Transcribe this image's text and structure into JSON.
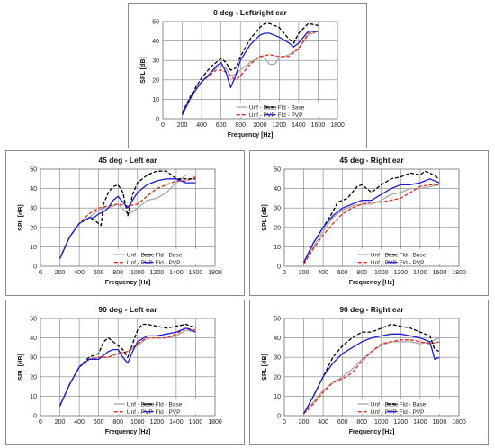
{
  "chart_data": [
    {
      "type": "line",
      "title": "0 deg - Left/right ear",
      "xlabel": "Frequency [Hz]",
      "ylabel": "SPL [dB]",
      "xlim": [
        0,
        1800
      ],
      "ylim": [
        0,
        50
      ],
      "xticks": [
        0,
        200,
        400,
        600,
        800,
        1000,
        1200,
        1400,
        1600,
        1800
      ],
      "yticks": [
        0,
        10,
        20,
        30,
        40,
        50
      ],
      "grid": true,
      "legend": "bottom-right inside, 2 columns",
      "series": [
        {
          "name": "Unf - Base",
          "color": "#a6a6a6",
          "style": "solid",
          "x": [
            200,
            300,
            400,
            500,
            550,
            600,
            650,
            700,
            750,
            800,
            900,
            1000,
            1050,
            1100,
            1150,
            1200,
            1300,
            1400,
            1500,
            1600
          ],
          "y": [
            3,
            12,
            19,
            24,
            26,
            27,
            26,
            22,
            23,
            25,
            29,
            32,
            31,
            28,
            28,
            31,
            33,
            36,
            43,
            45
          ]
        },
        {
          "name": "Unf - PVP",
          "color": "#e8291c",
          "style": "dashed",
          "x": [
            200,
            300,
            400,
            500,
            550,
            600,
            650,
            700,
            750,
            800,
            900,
            1000,
            1100,
            1200,
            1300,
            1400,
            1500,
            1600
          ],
          "y": [
            2,
            12,
            19,
            23,
            25,
            25,
            24,
            22,
            20,
            22,
            28,
            32,
            33,
            32,
            32,
            36,
            44,
            45
          ]
        },
        {
          "name": "Fld - Base",
          "color": "#000000",
          "style": "dashed",
          "x": [
            200,
            300,
            400,
            500,
            550,
            600,
            650,
            700,
            750,
            800,
            900,
            1000,
            1050,
            1100,
            1200,
            1300,
            1350,
            1400,
            1500,
            1600
          ],
          "y": [
            3,
            13,
            21,
            27,
            29,
            31,
            29,
            25,
            26,
            32,
            41,
            47,
            49,
            49,
            47,
            41,
            39,
            44,
            49,
            48
          ]
        },
        {
          "name": "Fld - PVP",
          "color": "#1c1cd8",
          "style": "solid",
          "x": [
            200,
            300,
            400,
            500,
            550,
            600,
            650,
            700,
            750,
            800,
            900,
            1000,
            1050,
            1100,
            1200,
            1300,
            1350,
            1400,
            1500,
            1600
          ],
          "y": [
            2,
            12,
            19,
            24,
            27,
            29,
            24,
            16,
            22,
            30,
            38,
            43,
            44,
            44,
            42,
            39,
            37,
            39,
            45,
            45
          ]
        }
      ]
    },
    {
      "type": "line",
      "title": "45 deg - Left ear",
      "xlabel": "Frequency [Hz]",
      "ylabel": "SPL [dB]",
      "xlim": [
        0,
        1800
      ],
      "ylim": [
        0,
        50
      ],
      "xticks": [
        0,
        200,
        400,
        600,
        800,
        1000,
        1200,
        1400,
        1600,
        1800
      ],
      "yticks": [
        0,
        10,
        20,
        30,
        40,
        50
      ],
      "grid": true,
      "legend": "bottom-right inside, 2 columns",
      "series": [
        {
          "name": "Unf - Base",
          "color": "#a6a6a6",
          "style": "solid",
          "x": [
            200,
            300,
            400,
            500,
            600,
            650,
            700,
            800,
            900,
            950,
            1000,
            1100,
            1200,
            1300,
            1400,
            1500,
            1600
          ],
          "y": [
            4,
            15,
            22,
            25,
            29,
            30,
            30,
            32,
            27,
            28,
            30,
            34,
            35,
            38,
            43,
            47,
            47
          ]
        },
        {
          "name": "Unf - PVP",
          "color": "#e8291c",
          "style": "dashed",
          "x": [
            200,
            300,
            400,
            500,
            600,
            700,
            800,
            900,
            1000,
            1100,
            1200,
            1300,
            1400,
            1500,
            1600
          ],
          "y": [
            4,
            15,
            22,
            27,
            30,
            31,
            32,
            31,
            32,
            36,
            40,
            42,
            44,
            44,
            46
          ]
        },
        {
          "name": "Fld - Base",
          "color": "#000000",
          "style": "dashed",
          "x": [
            200,
            300,
            400,
            500,
            550,
            600,
            625,
            650,
            700,
            750,
            800,
            850,
            900,
            950,
            1000,
            1100,
            1200,
            1300,
            1400,
            1500,
            1600
          ],
          "y": [
            4,
            15,
            22,
            25,
            24,
            22,
            21,
            32,
            38,
            41,
            42,
            38,
            26,
            37,
            43,
            47,
            49,
            49,
            45,
            45,
            45
          ]
        },
        {
          "name": "Fld - PVP",
          "color": "#1c1cd8",
          "style": "solid",
          "x": [
            200,
            300,
            400,
            500,
            550,
            600,
            650,
            700,
            750,
            800,
            850,
            900,
            950,
            1000,
            1100,
            1200,
            1300,
            1400,
            1500,
            1600
          ],
          "y": [
            4,
            15,
            22,
            25,
            25,
            27,
            28,
            30,
            34,
            36,
            33,
            30,
            34,
            38,
            42,
            44,
            45,
            45,
            43,
            43
          ]
        }
      ]
    },
    {
      "type": "line",
      "title": "45 deg - Right ear",
      "xlabel": "Frequency [Hz]",
      "ylabel": "SPL [dB]",
      "xlim": [
        0,
        1800
      ],
      "ylim": [
        0,
        50
      ],
      "xticks": [
        0,
        200,
        400,
        600,
        800,
        1000,
        1200,
        1400,
        1600,
        1800
      ],
      "yticks": [
        0,
        10,
        20,
        30,
        40,
        50
      ],
      "grid": true,
      "legend": "bottom-right inside, 2 columns",
      "series": [
        {
          "name": "Unf - Base",
          "color": "#a6a6a6",
          "style": "solid",
          "x": [
            200,
            300,
            400,
            500,
            600,
            700,
            800,
            900,
            1000,
            1100,
            1200,
            1300,
            1400,
            1500,
            1600
          ],
          "y": [
            2,
            10,
            18,
            25,
            29,
            31,
            32,
            32,
            34,
            37,
            38,
            40,
            40,
            41,
            42
          ]
        },
        {
          "name": "Unf - PVP",
          "color": "#e8291c",
          "style": "dashed",
          "x": [
            200,
            300,
            400,
            500,
            600,
            700,
            800,
            900,
            1000,
            1100,
            1200,
            1300,
            1400,
            1500,
            1600
          ],
          "y": [
            1,
            9,
            16,
            22,
            27,
            30,
            32,
            33,
            33,
            34,
            35,
            38,
            41,
            42,
            42
          ]
        },
        {
          "name": "Fld - Base",
          "color": "#000000",
          "style": "dashed",
          "x": [
            200,
            300,
            400,
            500,
            550,
            600,
            650,
            700,
            750,
            800,
            900,
            1000,
            1100,
            1200,
            1300,
            1400,
            1450,
            1500,
            1600
          ],
          "y": [
            2,
            12,
            20,
            28,
            33,
            34,
            35,
            38,
            41,
            42,
            38,
            42,
            45,
            46,
            48,
            47,
            49,
            48,
            45
          ]
        },
        {
          "name": "Fld - PVP",
          "color": "#1c1cd8",
          "style": "solid",
          "x": [
            200,
            300,
            400,
            500,
            600,
            700,
            800,
            900,
            1000,
            1100,
            1200,
            1300,
            1400,
            1500,
            1600
          ],
          "y": [
            2,
            12,
            20,
            26,
            30,
            32,
            34,
            34,
            37,
            40,
            42,
            42,
            43,
            45,
            43
          ]
        }
      ]
    },
    {
      "type": "line",
      "title": "90 deg - Left ear",
      "xlabel": "Frequency [Hz]",
      "ylabel": "SPL [dB]",
      "xlim": [
        0,
        1800
      ],
      "ylim": [
        0,
        50
      ],
      "xticks": [
        0,
        200,
        400,
        600,
        800,
        1000,
        1200,
        1400,
        1600,
        1800
      ],
      "yticks": [
        0,
        10,
        20,
        30,
        40,
        50
      ],
      "grid": true,
      "legend": "bottom-right inside, 2 columns",
      "series": [
        {
          "name": "Unf - Base",
          "color": "#a6a6a6",
          "style": "solid",
          "x": [
            200,
            300,
            400,
            500,
            600,
            700,
            800,
            900,
            1000,
            1100,
            1200,
            1300,
            1400,
            1500,
            1600
          ],
          "y": [
            5,
            16,
            25,
            29,
            30,
            30,
            32,
            33,
            36,
            40,
            40,
            40,
            41,
            44,
            43
          ]
        },
        {
          "name": "Unf - PVP",
          "color": "#e8291c",
          "style": "dashed",
          "x": [
            200,
            300,
            400,
            500,
            600,
            700,
            800,
            900,
            1000,
            1100,
            1200,
            1300,
            1400,
            1500,
            1600
          ],
          "y": [
            5,
            16,
            25,
            29,
            30,
            30,
            32,
            33,
            37,
            40,
            40,
            40,
            42,
            45,
            44
          ]
        },
        {
          "name": "Fld - Base",
          "color": "#000000",
          "style": "dashed",
          "x": [
            200,
            300,
            400,
            500,
            600,
            650,
            700,
            750,
            800,
            850,
            900,
            950,
            1000,
            1050,
            1100,
            1200,
            1300,
            1400,
            1500,
            1600
          ],
          "y": [
            5,
            16,
            25,
            30,
            32,
            38,
            40,
            38,
            36,
            34,
            30,
            37,
            44,
            47,
            47,
            46,
            45,
            46,
            47,
            45
          ]
        },
        {
          "name": "Fld - PVP",
          "color": "#1c1cd8",
          "style": "solid",
          "x": [
            200,
            300,
            400,
            500,
            600,
            700,
            750,
            800,
            850,
            900,
            950,
            1000,
            1100,
            1200,
            1300,
            1400,
            1500,
            1600
          ],
          "y": [
            5,
            16,
            25,
            29,
            29,
            33,
            34,
            34,
            30,
            27,
            33,
            38,
            41,
            41,
            42,
            43,
            45,
            43
          ]
        }
      ]
    },
    {
      "type": "line",
      "title": "90 deg - Right ear",
      "xlabel": "Frequency [Hz]",
      "ylabel": "SPL [dB]",
      "xlim": [
        0,
        1800
      ],
      "ylim": [
        0,
        50
      ],
      "xticks": [
        0,
        200,
        400,
        600,
        800,
        1000,
        1200,
        1400,
        1600,
        1800
      ],
      "yticks": [
        0,
        10,
        20,
        30,
        40,
        50
      ],
      "grid": true,
      "legend": "bottom-right inside, 2 columns",
      "series": [
        {
          "name": "Unf - Base",
          "color": "#a6a6a6",
          "style": "solid",
          "x": [
            200,
            300,
            400,
            500,
            600,
            700,
            800,
            900,
            1000,
            1100,
            1200,
            1300,
            1400,
            1500,
            1600
          ],
          "y": [
            1,
            7,
            13,
            17,
            20,
            24,
            29,
            33,
            36,
            38,
            38,
            38,
            37,
            38,
            40
          ]
        },
        {
          "name": "Unf - PVP",
          "color": "#e8291c",
          "style": "dashed",
          "x": [
            200,
            300,
            400,
            500,
            600,
            700,
            800,
            900,
            1000,
            1100,
            1200,
            1300,
            1400,
            1500,
            1600
          ],
          "y": [
            1,
            6,
            12,
            17,
            19,
            22,
            28,
            33,
            37,
            38,
            39,
            39,
            38,
            37,
            38
          ]
        },
        {
          "name": "Fld - Base",
          "color": "#000000",
          "style": "dashed",
          "x": [
            200,
            300,
            400,
            500,
            600,
            700,
            800,
            900,
            1000,
            1100,
            1200,
            1300,
            1400,
            1500,
            1550,
            1600
          ],
          "y": [
            1,
            10,
            20,
            30,
            36,
            40,
            43,
            43,
            45,
            47,
            46,
            45,
            43,
            41,
            34,
            33
          ]
        },
        {
          "name": "Fld - PVP",
          "color": "#1c1cd8",
          "style": "solid",
          "x": [
            200,
            300,
            400,
            500,
            600,
            700,
            800,
            900,
            1000,
            1100,
            1200,
            1300,
            1400,
            1500,
            1550,
            1600
          ],
          "y": [
            1,
            10,
            20,
            27,
            32,
            35,
            38,
            40,
            41,
            42,
            42,
            41,
            40,
            38,
            29,
            30
          ]
        }
      ]
    }
  ]
}
